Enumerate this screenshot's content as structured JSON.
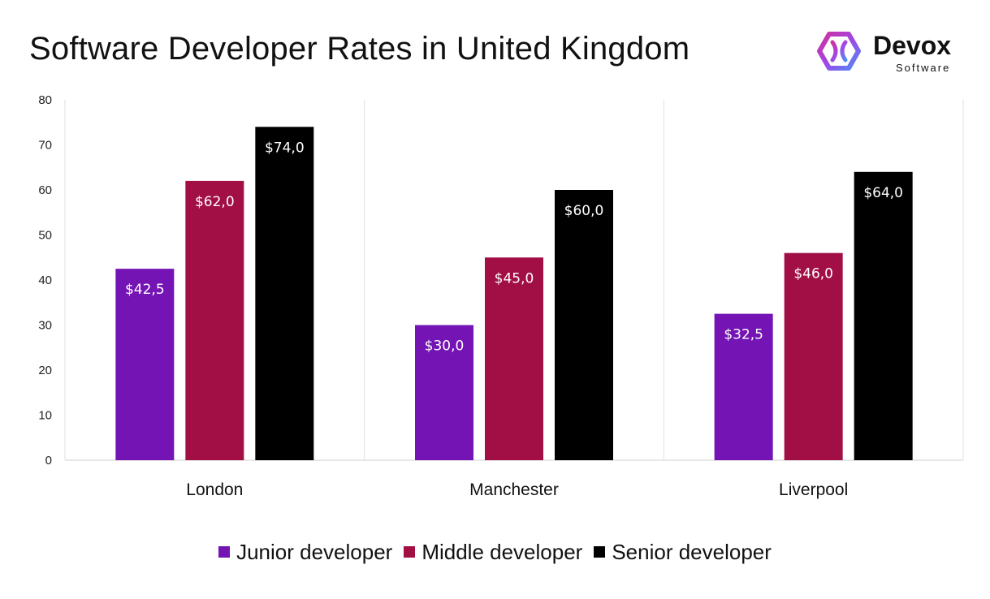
{
  "brand": {
    "name": "Devox",
    "sub": "Software",
    "colors": {
      "primary": "#b93cdc",
      "secondary": "#5b7bf5"
    },
    "icon": "devox-logo-icon"
  },
  "chart_data": {
    "type": "bar",
    "title": "Software Developer Rates in United Kingdom",
    "xlabel": "",
    "ylabel": "",
    "categories": [
      "London",
      "Manchester",
      "Liverpool"
    ],
    "series": [
      {
        "name": "Junior developer",
        "color": "#7414b4",
        "values": [
          42.5,
          30.0,
          32.5
        ],
        "labels": [
          "$42,5",
          "$30,0",
          "$32,5"
        ]
      },
      {
        "name": "Middle developer",
        "color": "#a20f45",
        "values": [
          62.0,
          45.0,
          46.0
        ],
        "labels": [
          "$62,0",
          "$45,0",
          "$46,0"
        ]
      },
      {
        "name": "Senior developer",
        "color": "#000000",
        "values": [
          74.0,
          60.0,
          64.0
        ],
        "labels": [
          "$74,0",
          "$60,0",
          "$64,0"
        ]
      }
    ],
    "ylim": [
      0,
      80
    ],
    "yticks": [
      0,
      10,
      20,
      30,
      40,
      50,
      60,
      70,
      80
    ],
    "grid": false,
    "category_separators": true,
    "legend_position": "bottom"
  }
}
